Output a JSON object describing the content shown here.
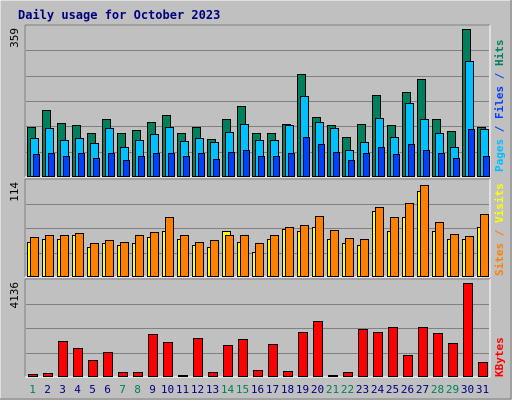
{
  "colors": {
    "background": "#c0c0c0",
    "title": "#00007f",
    "hits": "#00805c",
    "files": "#00c0ff",
    "pages": "#0040ff",
    "visits": "#ffff00",
    "sites": "#ff8000",
    "kbytes": "#ff0000",
    "weekend_label": "#00805c",
    "weekday_label": "#000080"
  },
  "chart_data": [
    {
      "type": "bar",
      "title": "Daily usage for October 2023",
      "axis_max_label": "359",
      "ylim": [
        0,
        359
      ],
      "legend": [
        {
          "key": "pages",
          "text": "Pages",
          "color": "#00c0ff"
        },
        {
          "key": "sep1",
          "text": " / ",
          "color": "#0040ff"
        },
        {
          "key": "files",
          "text": "Files",
          "color": "#0040ff"
        },
        {
          "key": "sep2",
          "text": " / ",
          "color": "#0040ff"
        },
        {
          "key": "hits",
          "text": "Hits",
          "color": "#00805c"
        }
      ],
      "categories": [
        "1",
        "2",
        "3",
        "4",
        "5",
        "6",
        "7",
        "8",
        "9",
        "10",
        "11",
        "12",
        "13",
        "14",
        "15",
        "16",
        "17",
        "18",
        "19",
        "20",
        "21",
        "22",
        "23",
        "24",
        "25",
        "26",
        "27",
        "28",
        "29",
        "30",
        "31"
      ],
      "series": [
        {
          "name": "Hits",
          "values": [
            120,
            160,
            130,
            125,
            105,
            138,
            105,
            112,
            132,
            150,
            105,
            120,
            90,
            140,
            172,
            105,
            105,
            128,
            248,
            145,
            125,
            95,
            128,
            198,
            125,
            205,
            238,
            140,
            110,
            359,
            120
          ]
        },
        {
          "name": "Files",
          "values": [
            92,
            118,
            87,
            92,
            80,
            117,
            70,
            88,
            102,
            120,
            85,
            92,
            83,
            108,
            128,
            87,
            87,
            125,
            195,
            133,
            117,
            64,
            82,
            142,
            95,
            178,
            138,
            105,
            72,
            282,
            114
          ]
        },
        {
          "name": "Pages",
          "values": [
            53,
            55,
            50,
            55,
            45,
            55,
            38,
            48,
            55,
            55,
            50,
            55,
            42,
            58,
            64,
            50,
            48,
            55,
            95,
            77,
            58,
            40,
            56,
            72,
            53,
            77,
            64,
            55,
            45,
            114,
            50
          ]
        }
      ]
    },
    {
      "type": "bar",
      "axis_max_label": "114",
      "ylim": [
        0,
        114
      ],
      "legend": [
        {
          "key": "sites",
          "text": "Sites",
          "color": "#ff8000"
        },
        {
          "key": "sep1",
          "text": " / ",
          "color": "#ff8000"
        },
        {
          "key": "visits",
          "text": "Visits",
          "color": "#ffff00"
        }
      ],
      "categories": [
        "1",
        "2",
        "3",
        "4",
        "5",
        "6",
        "7",
        "8",
        "9",
        "10",
        "11",
        "12",
        "13",
        "14",
        "15",
        "16",
        "17",
        "18",
        "19",
        "20",
        "21",
        "22",
        "23",
        "24",
        "25",
        "26",
        "27",
        "28",
        "29",
        "30",
        "31"
      ],
      "series": [
        {
          "name": "Visits",
          "values": [
            42,
            45,
            45,
            50,
            35,
            40,
            38,
            40,
            48,
            55,
            45,
            38,
            35,
            55,
            42,
            30,
            45,
            58,
            55,
            60,
            45,
            40,
            38,
            80,
            55,
            72,
            104,
            55,
            45,
            45,
            60
          ]
        },
        {
          "name": "Sites",
          "values": [
            48,
            50,
            50,
            53,
            40,
            44,
            42,
            50,
            54,
            72,
            50,
            42,
            44,
            50,
            50,
            40,
            50,
            60,
            63,
            73,
            57,
            46,
            45,
            85,
            72,
            90,
            111,
            66,
            51,
            49,
            76
          ]
        }
      ]
    },
    {
      "type": "bar",
      "axis_max_label": "4136",
      "ylim": [
        0,
        4136
      ],
      "legend": [
        {
          "key": "kbytes",
          "text": "KBytes",
          "color": "#ff0000"
        }
      ],
      "categories": [
        "1",
        "2",
        "3",
        "4",
        "5",
        "6",
        "7",
        "8",
        "9",
        "10",
        "11",
        "12",
        "13",
        "14",
        "15",
        "16",
        "17",
        "18",
        "19",
        "20",
        "21",
        "22",
        "23",
        "24",
        "25",
        "26",
        "27",
        "28",
        "29",
        "30",
        "31"
      ],
      "series": [
        {
          "name": "KBytes",
          "values": [
            80,
            120,
            1550,
            1260,
            730,
            1050,
            180,
            200,
            1880,
            1530,
            60,
            1700,
            180,
            1390,
            1640,
            270,
            1430,
            220,
            1940,
            2460,
            60,
            200,
            2100,
            1940,
            2180,
            940,
            2160,
            1930,
            1450,
            4136,
            620
          ]
        }
      ]
    }
  ]
}
